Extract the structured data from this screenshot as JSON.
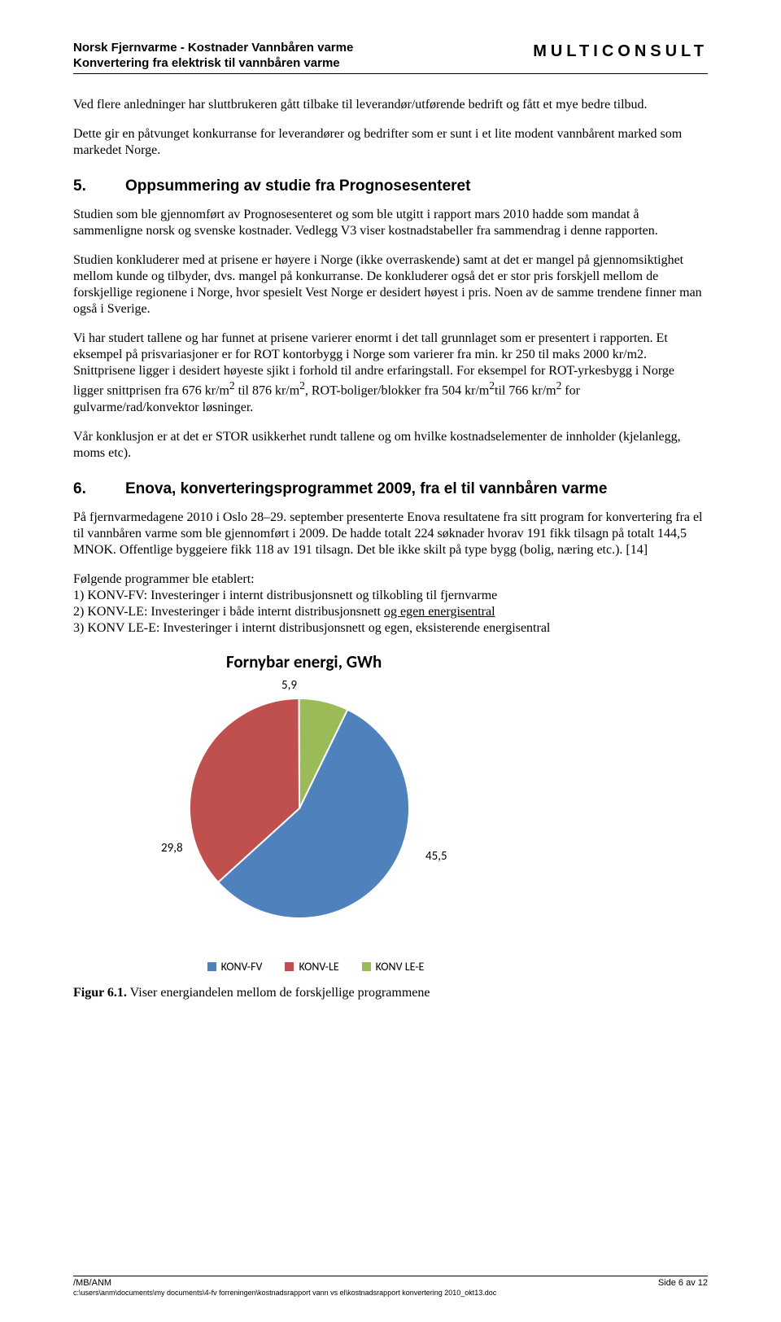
{
  "header": {
    "left_line1": "Norsk Fjernvarme - Kostnader Vannbåren varme",
    "left_line2": "Konvertering fra elektrisk til vannbåren varme",
    "right": "MULTICONSULT"
  },
  "intro": {
    "p1": "Ved flere anledninger har sluttbrukeren gått tilbake til leverandør/utførende bedrift og fått et mye bedre tilbud.",
    "p2": "Dette gir en påtvunget konkurranse for leverandører og bedrifter som er sunt i et lite modent vannbårent marked som markedet Norge."
  },
  "section5": {
    "num": "5.",
    "title": "Oppsummering av studie fra Prognosesenteret",
    "p1": "Studien som ble gjennomført av Prognosesenteret og som ble utgitt i rapport mars 2010 hadde som mandat å sammenligne norsk og svenske kostnader. Vedlegg V3 viser kostnadstabeller fra sammendrag i denne rapporten.",
    "p2": "Studien konkluderer med at prisene er høyere i Norge (ikke overraskende) samt at det er mangel på gjennomsiktighet mellom kunde og tilbyder, dvs. mangel på konkurranse.   De konkluderer også det er stor pris forskjell mellom de forskjellige regionene i Norge, hvor spesielt Vest Norge er desidert høyest i pris. Noen av de samme trendene finner man også i Sverige.",
    "p3_a": "Vi har studert tallene og har funnet at prisene varierer enormt i det tall grunnlaget som er presentert i rapporten. Et eksempel på prisvariasjoner er for ROT kontorbygg i Norge som varierer fra min. kr 250 til maks 2000 kr/m2. Snittprisene ligger i desidert høyeste sjikt i forhold til andre erfaringstall. For eksempel for  ROT-yrkesbygg i Norge ligger snittprisen fra 676 kr/m",
    "p3_b": " til 876 kr/m",
    "p3_c": ", ROT-boliger/blokker fra 504 kr/m",
    "p3_d": "til 766 kr/m",
    "p3_e": " for gulvarme/rad/konvektor løsninger.",
    "sup2": "2",
    "p4": "Vår konklusjon er at det er STOR usikkerhet rundt tallene og om hvilke kostnadselementer de innholder (kjelanlegg, moms etc)."
  },
  "section6": {
    "num": "6.",
    "title": "Enova, konverteringsprogrammet 2009, fra el til vannbåren varme",
    "p1": "På fjernvarmedagene 2010 i Oslo 28–29. september presenterte Enova resultatene fra sitt program for konvertering fra el til vannbåren varme som ble gjennomført i 2009. De hadde totalt 224 søknader hvorav 191 fikk tilsagn på totalt 144,5 MNOK. Offentlige byggeiere fikk 118 av 191 tilsagn. Det ble ikke skilt på type bygg (bolig, næring etc.). [14]",
    "list_intro": "Følgende programmer ble etablert:",
    "li1": "1) KONV-FV: Investeringer i internt distribusjonsnett og tilkobling til fjernvarme",
    "li2_a": "2) KONV-LE: Investeringer i både internt distribusjonsnett ",
    "li2_b": "og egen energisentral",
    "li3": "3) KONV LE-E: Investeringer i internt distribusjonsnett og egen, eksisterende energisentral"
  },
  "chart": {
    "type": "pie",
    "title": "Fornybar energi, GWh",
    "background_color": "#ffffff",
    "title_fontsize": 21,
    "label_fontsize": 15,
    "series": [
      {
        "name": "KONV-FV",
        "value": 45.5,
        "color": "#4f81bd",
        "label": "45,5"
      },
      {
        "name": "KONV-LE",
        "value": 29.8,
        "color": "#c0504d",
        "label": "29,8"
      },
      {
        "name": "KONV LE-E",
        "value": 5.9,
        "color": "#9bbb59",
        "label": "5,9"
      }
    ],
    "legend_position": "bottom"
  },
  "figure_caption": {
    "bold": "Figur 6.1.",
    "rest": " Viser energiandelen mellom de forskjellige programmene"
  },
  "footer": {
    "left_top": "/MB/ANM",
    "left_path": "c:\\users\\anm\\documents\\my documents\\4-fv forreningen\\kostnadsrapport vann vs el\\kostnadsrapport konvertering 2010_okt13.doc",
    "right": "Side 6 av 12"
  }
}
